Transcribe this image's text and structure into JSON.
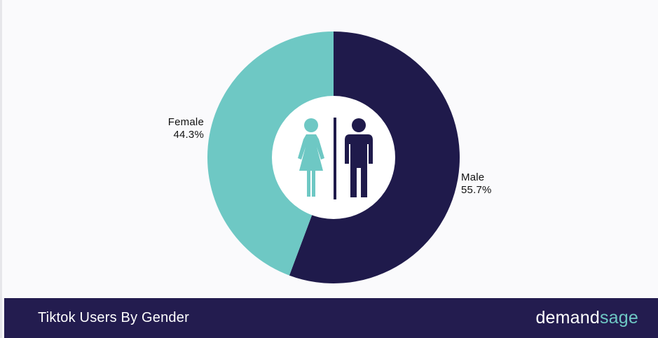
{
  "colors": {
    "male": "#1f1a4b",
    "female": "#6ec8c4",
    "background": "#fafafc",
    "footer": "#231c4f",
    "hole": "#ffffff",
    "brand_accent": "#6ec8c4"
  },
  "icons": {
    "center": [
      "female-person-icon",
      "divider-line",
      "male-person-icon"
    ]
  },
  "chart_data": {
    "type": "pie",
    "donut": true,
    "title": "Tiktok Users By Gender",
    "categories": [
      "Male",
      "Female"
    ],
    "values": [
      55.7,
      44.3
    ],
    "value_labels": [
      "55.7%",
      "44.3%"
    ]
  },
  "footer": {
    "title": "Tiktok Users By Gender",
    "brand_part1": "demand",
    "brand_part2": "sage"
  }
}
